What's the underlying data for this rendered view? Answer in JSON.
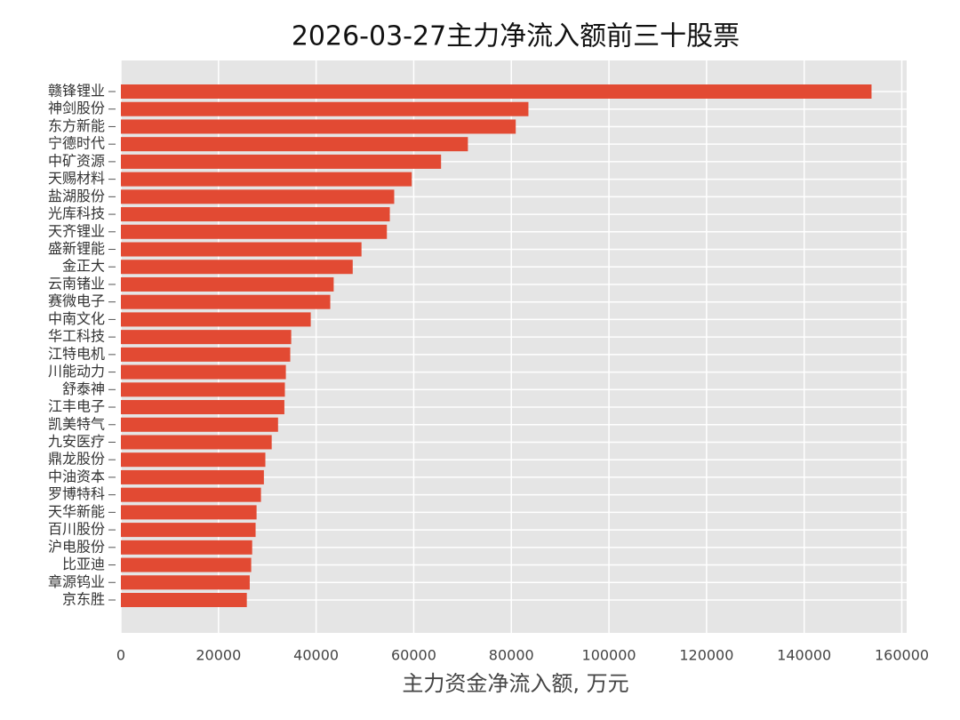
{
  "chart_data": {
    "type": "barh",
    "title": "2026-03-27主力净流入额前三十股票",
    "x_label": "主力资金净流入额, 万元",
    "categories": [
      "赣锋锂业",
      "神剑股份",
      "东方新能",
      "宁德时代",
      "中矿资源",
      "天赐材料",
      "盐湖股份",
      "光库科技",
      "天齐锂业",
      "盛新锂能",
      "金正大",
      "云南锗业",
      "赛微电子",
      "中南文化",
      "华工科技",
      "江特电机",
      "川能动力",
      "舒泰神",
      "江丰电子",
      "凯美特气",
      "九安医疗",
      "鼎龙股份",
      "中油资本",
      "罗博特科",
      "天华新能",
      "百川股份",
      "沪电股份",
      "比亚迪",
      "章源钨业",
      "京东胜"
    ],
    "values": [
      153800,
      83500,
      80900,
      71100,
      65600,
      59600,
      56000,
      55100,
      54500,
      49300,
      47500,
      43600,
      42900,
      38900,
      34900,
      34700,
      33800,
      33600,
      33500,
      32200,
      30900,
      29600,
      29300,
      28700,
      27800,
      27600,
      26900,
      26700,
      26400,
      25800
    ],
    "color": "#e24a33",
    "xlim": [
      0,
      161000
    ],
    "xticks": [
      0,
      20000,
      40000,
      60000,
      80000,
      100000,
      120000,
      140000,
      160000
    ],
    "grid": true
  }
}
